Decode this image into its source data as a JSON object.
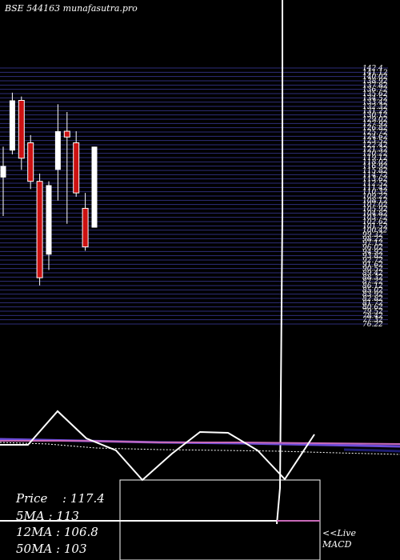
{
  "title": "BSE 544163 munafasutra.pro",
  "colors": {
    "background": "#000000",
    "grid": "#2e2e7a",
    "up": "#ffffff",
    "down": "#cc1111",
    "ma_purple": "#6b4bd8",
    "ma_pink": "#c86ab8",
    "macd_line": "#ffffff"
  },
  "stats": {
    "price_label": "Price",
    "price_value": "117.4",
    "ma5_label": "5MA",
    "ma5_value": "113",
    "ma12_label": "12MA",
    "ma12_value": "106.8",
    "ma50_label": "50MA",
    "ma50_value": "103"
  },
  "footer": {
    "live": "<<Live",
    "macd": "MACD"
  },
  "chart_data": {
    "type": "candlestick",
    "ylim": [
      76,
      142.4
    ],
    "y_tick_labels": [
      "142.4",
      "141.12",
      "140.02",
      "138.92",
      "137.82",
      "136.72",
      "135.62",
      "134.52",
      "133.42",
      "132.32",
      "131.22",
      "130.12",
      "129.02",
      "127.92",
      "126.82",
      "125.72",
      "124.62",
      "123.52",
      "122.42",
      "121.32",
      "120.22",
      "119.12",
      "118.02",
      "116.92",
      "115.82",
      "114.72",
      "113.62",
      "112.52",
      "111.42",
      "110.32",
      "109.22",
      "108.12",
      "107.02",
      "105.92",
      "104.82",
      "103.72",
      "102.62",
      "101.52",
      "100.42",
      "99.32",
      "98.22",
      "97.12",
      "96.02",
      "94.92",
      "93.82",
      "92.72",
      "91.62",
      "90.52",
      "89.42",
      "88.32",
      "87.22",
      "86.12",
      "85.02",
      "83.92",
      "82.82",
      "81.72",
      "80.62",
      "79.52",
      "78.42",
      "77.32",
      "76.22"
    ],
    "candles": [
      {
        "open": 114.0,
        "high": 122.0,
        "low": 104.0,
        "close": 117.0
      },
      {
        "open": 121.0,
        "high": 136.0,
        "low": 120.0,
        "close": 134.0
      },
      {
        "open": 134.0,
        "high": 135.0,
        "low": 116.0,
        "close": 119.0
      },
      {
        "open": 123.0,
        "high": 125.0,
        "low": 111.0,
        "close": 113.0
      },
      {
        "open": 113.0,
        "high": 115.0,
        "low": 86.0,
        "close": 88.0
      },
      {
        "open": 94.0,
        "high": 113.0,
        "low": 90.0,
        "close": 112.0
      },
      {
        "open": 116.0,
        "high": 133.0,
        "low": 108.0,
        "close": 126.0
      },
      {
        "open": 126.0,
        "high": 131.0,
        "low": 102.0,
        "close": 124.5
      },
      {
        "open": 123.0,
        "high": 126.0,
        "low": 109.0,
        "close": 110.0
      },
      {
        "open": 106.0,
        "high": 110.0,
        "low": 95.0,
        "close": 96.0
      },
      {
        "open": 101.0,
        "high": 122.0,
        "low": 101.0,
        "close": 122.0
      }
    ]
  }
}
